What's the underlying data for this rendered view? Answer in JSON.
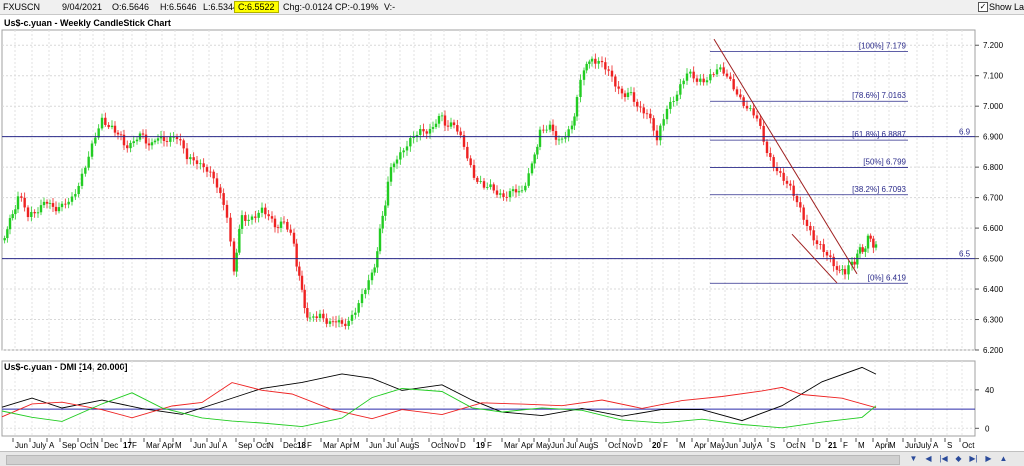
{
  "topbar": {
    "symbol": "FXUSCN",
    "date": "9/04/2021",
    "open": "O:6.5646",
    "high": "H:6.5646",
    "low": "L:6.5344",
    "close": "C:6.5522",
    "change": "Chg:-0.0124",
    "change_pct": "CP:-0.19%",
    "volume": "V:-",
    "show_last_label": "Show Last",
    "show_last_checked": "✓"
  },
  "chart_data": [
    {
      "type": "candlestick",
      "title": "Us$-c.yuan - Weekly CandleStick Chart",
      "ylim": [
        6.2,
        7.25
      ],
      "yticks": [
        "6.200",
        "6.300",
        "6.400",
        "6.500",
        "6.600",
        "6.700",
        "6.800",
        "6.900",
        "7.000",
        "7.100",
        "7.200"
      ],
      "grid": true,
      "up_color": "#22cc22",
      "down_color": "#ee2222",
      "close_path": [
        {
          "x": 0,
          "y": 6.56
        },
        {
          "x": 8,
          "y": 6.62
        },
        {
          "x": 16,
          "y": 6.7
        },
        {
          "x": 26,
          "y": 6.64
        },
        {
          "x": 36,
          "y": 6.67
        },
        {
          "x": 48,
          "y": 6.68
        },
        {
          "x": 60,
          "y": 6.66
        },
        {
          "x": 70,
          "y": 6.7
        },
        {
          "x": 80,
          "y": 6.78
        },
        {
          "x": 90,
          "y": 6.86
        },
        {
          "x": 100,
          "y": 6.95
        },
        {
          "x": 110,
          "y": 6.94
        },
        {
          "x": 122,
          "y": 6.87
        },
        {
          "x": 135,
          "y": 6.9
        },
        {
          "x": 150,
          "y": 6.88
        },
        {
          "x": 165,
          "y": 6.9
        },
        {
          "x": 175,
          "y": 6.89
        },
        {
          "x": 185,
          "y": 6.83
        },
        {
          "x": 195,
          "y": 6.83
        },
        {
          "x": 205,
          "y": 6.79
        },
        {
          "x": 215,
          "y": 6.73
        },
        {
          "x": 225,
          "y": 6.65
        },
        {
          "x": 232,
          "y": 6.47
        },
        {
          "x": 240,
          "y": 6.64
        },
        {
          "x": 250,
          "y": 6.64
        },
        {
          "x": 260,
          "y": 6.65
        },
        {
          "x": 270,
          "y": 6.62
        },
        {
          "x": 282,
          "y": 6.61
        },
        {
          "x": 292,
          "y": 6.55
        },
        {
          "x": 300,
          "y": 6.38
        },
        {
          "x": 308,
          "y": 6.29
        },
        {
          "x": 318,
          "y": 6.31
        },
        {
          "x": 328,
          "y": 6.3
        },
        {
          "x": 340,
          "y": 6.28
        },
        {
          "x": 350,
          "y": 6.32
        },
        {
          "x": 360,
          "y": 6.37
        },
        {
          "x": 370,
          "y": 6.44
        },
        {
          "x": 378,
          "y": 6.58
        },
        {
          "x": 386,
          "y": 6.75
        },
        {
          "x": 395,
          "y": 6.84
        },
        {
          "x": 405,
          "y": 6.88
        },
        {
          "x": 415,
          "y": 6.9
        },
        {
          "x": 428,
          "y": 6.93
        },
        {
          "x": 440,
          "y": 6.96
        },
        {
          "x": 452,
          "y": 6.93
        },
        {
          "x": 462,
          "y": 6.87
        },
        {
          "x": 472,
          "y": 6.78
        },
        {
          "x": 482,
          "y": 6.73
        },
        {
          "x": 495,
          "y": 6.72
        },
        {
          "x": 508,
          "y": 6.71
        },
        {
          "x": 520,
          "y": 6.73
        },
        {
          "x": 530,
          "y": 6.8
        },
        {
          "x": 538,
          "y": 6.92
        },
        {
          "x": 548,
          "y": 6.92
        },
        {
          "x": 560,
          "y": 6.89
        },
        {
          "x": 570,
          "y": 6.92
        },
        {
          "x": 575,
          "y": 7.04
        },
        {
          "x": 582,
          "y": 7.12
        },
        {
          "x": 590,
          "y": 7.16
        },
        {
          "x": 600,
          "y": 7.13
        },
        {
          "x": 610,
          "y": 7.09
        },
        {
          "x": 620,
          "y": 7.05
        },
        {
          "x": 632,
          "y": 7.02
        },
        {
          "x": 645,
          "y": 6.98
        },
        {
          "x": 655,
          "y": 6.88
        },
        {
          "x": 665,
          "y": 7.0
        },
        {
          "x": 675,
          "y": 7.05
        },
        {
          "x": 685,
          "y": 7.1
        },
        {
          "x": 695,
          "y": 7.08
        },
        {
          "x": 705,
          "y": 7.1
        },
        {
          "x": 715,
          "y": 7.12
        },
        {
          "x": 725,
          "y": 7.09
        },
        {
          "x": 735,
          "y": 7.05
        },
        {
          "x": 745,
          "y": 7.0
        },
        {
          "x": 755,
          "y": 6.95
        },
        {
          "x": 765,
          "y": 6.85
        },
        {
          "x": 775,
          "y": 6.8
        },
        {
          "x": 785,
          "y": 6.74
        },
        {
          "x": 795,
          "y": 6.68
        },
        {
          "x": 805,
          "y": 6.62
        },
        {
          "x": 815,
          "y": 6.55
        },
        {
          "x": 825,
          "y": 6.5
        },
        {
          "x": 835,
          "y": 6.47
        },
        {
          "x": 843,
          "y": 6.45
        },
        {
          "x": 850,
          "y": 6.49
        },
        {
          "x": 858,
          "y": 6.52
        },
        {
          "x": 866,
          "y": 6.56
        },
        {
          "x": 874,
          "y": 6.55
        }
      ],
      "price_lines": [
        {
          "y": 6.9,
          "label": "6.9"
        },
        {
          "y": 6.5,
          "label": "6.5"
        }
      ],
      "fibonacci": [
        {
          "label": "[100%] 7.179",
          "y": 7.179
        },
        {
          "label": "[78.6%] 7.0163",
          "y": 7.0163
        },
        {
          "label": "[61.8%] 6.8887",
          "y": 6.8887
        },
        {
          "label": "[50%] 6.799",
          "y": 6.799
        },
        {
          "label": "[38.2%] 6.7093",
          "y": 6.7093
        },
        {
          "label": "[0%] 6.419",
          "y": 6.419
        }
      ],
      "trendlines": [
        {
          "x1": 712,
          "y1": 7.22,
          "x2": 855,
          "y2": 6.45
        },
        {
          "x1": 790,
          "y1": 6.58,
          "x2": 835,
          "y2": 6.42
        }
      ]
    },
    {
      "type": "line",
      "title": "Us$-c.yuan - DMI [14, 20.000]",
      "ylim": [
        -8,
        70
      ],
      "yticks": [
        "0",
        "40"
      ],
      "threshold": 20,
      "series": [
        {
          "color": "#000000",
          "values": [
            [
              0,
              22
            ],
            [
              30,
              30
            ],
            [
              60,
              22
            ],
            [
              100,
              28
            ],
            [
              140,
              20
            ],
            [
              180,
              16
            ],
            [
              220,
              28
            ],
            [
              260,
              40
            ],
            [
              300,
              48
            ],
            [
              340,
              58
            ],
            [
              370,
              52
            ],
            [
              400,
              38
            ],
            [
              440,
              45
            ],
            [
              470,
              28
            ],
            [
              500,
              18
            ],
            [
              540,
              12
            ],
            [
              580,
              20
            ],
            [
              620,
              14
            ],
            [
              660,
              20
            ],
            [
              700,
              18
            ],
            [
              740,
              8
            ],
            [
              780,
              25
            ],
            [
              820,
              48
            ],
            [
              860,
              62
            ],
            [
              874,
              55
            ]
          ]
        },
        {
          "color": "#ee2222",
          "values": [
            [
              0,
              12
            ],
            [
              30,
              24
            ],
            [
              60,
              28
            ],
            [
              100,
              18
            ],
            [
              130,
              12
            ],
            [
              170,
              22
            ],
            [
              200,
              28
            ],
            [
              230,
              48
            ],
            [
              260,
              38
            ],
            [
              290,
              36
            ],
            [
              330,
              18
            ],
            [
              370,
              10
            ],
            [
              400,
              18
            ],
            [
              440,
              14
            ],
            [
              480,
              28
            ],
            [
              520,
              25
            ],
            [
              560,
              22
            ],
            [
              600,
              30
            ],
            [
              640,
              22
            ],
            [
              680,
              28
            ],
            [
              720,
              32
            ],
            [
              760,
              40
            ],
            [
              780,
              44
            ],
            [
              800,
              36
            ],
            [
              840,
              30
            ],
            [
              874,
              20
            ]
          ]
        },
        {
          "color": "#22cc22",
          "values": [
            [
              0,
              18
            ],
            [
              30,
              10
            ],
            [
              60,
              8
            ],
            [
              100,
              24
            ],
            [
              130,
              38
            ],
            [
              160,
              22
            ],
            [
              200,
              12
            ],
            [
              230,
              8
            ],
            [
              260,
              4
            ],
            [
              300,
              2
            ],
            [
              340,
              12
            ],
            [
              370,
              32
            ],
            [
              400,
              40
            ],
            [
              440,
              38
            ],
            [
              470,
              20
            ],
            [
              500,
              18
            ],
            [
              540,
              20
            ],
            [
              580,
              18
            ],
            [
              620,
              10
            ],
            [
              660,
              6
            ],
            [
              700,
              8
            ],
            [
              740,
              4
            ],
            [
              780,
              2
            ],
            [
              820,
              6
            ],
            [
              860,
              10
            ],
            [
              874,
              22
            ]
          ]
        }
      ]
    }
  ],
  "xaxis": {
    "labels": [
      {
        "x": 15,
        "t": "Jun"
      },
      {
        "x": 32,
        "t": "July"
      },
      {
        "x": 49,
        "t": "A"
      },
      {
        "x": 62,
        "t": "Sep"
      },
      {
        "x": 80,
        "t": "Oct"
      },
      {
        "x": 93,
        "t": "N"
      },
      {
        "x": 104,
        "t": "Dec"
      },
      {
        "x": 123,
        "t": "17",
        "b": true
      },
      {
        "x": 132,
        "t": "F"
      },
      {
        "x": 146,
        "t": "Mar"
      },
      {
        "x": 162,
        "t": "Apr"
      },
      {
        "x": 175,
        "t": "M"
      },
      {
        "x": 193,
        "t": "Jun"
      },
      {
        "x": 209,
        "t": "Jul"
      },
      {
        "x": 222,
        "t": "A"
      },
      {
        "x": 238,
        "t": "Sep"
      },
      {
        "x": 256,
        "t": "Oct"
      },
      {
        "x": 268,
        "t": "N"
      },
      {
        "x": 283,
        "t": "Dec"
      },
      {
        "x": 297,
        "t": "18",
        "b": true
      },
      {
        "x": 307,
        "t": "F"
      },
      {
        "x": 323,
        "t": "Mar"
      },
      {
        "x": 340,
        "t": "Apr"
      },
      {
        "x": 353,
        "t": "M"
      },
      {
        "x": 369,
        "t": "Jun"
      },
      {
        "x": 386,
        "t": "Jul"
      },
      {
        "x": 400,
        "t": "Aug"
      },
      {
        "x": 414,
        "t": "S"
      },
      {
        "x": 431,
        "t": "Oct"
      },
      {
        "x": 444,
        "t": "Nov"
      },
      {
        "x": 460,
        "t": "D"
      },
      {
        "x": 476,
        "t": "19",
        "b": true
      },
      {
        "x": 487,
        "t": "F"
      },
      {
        "x": 504,
        "t": "Mar"
      },
      {
        "x": 521,
        "t": "Apr"
      },
      {
        "x": 536,
        "t": "May"
      },
      {
        "x": 551,
        "t": "Jun"
      },
      {
        "x": 566,
        "t": "Jul"
      },
      {
        "x": 579,
        "t": "Aug"
      },
      {
        "x": 593,
        "t": "S"
      },
      {
        "x": 608,
        "t": "Oct"
      },
      {
        "x": 622,
        "t": "Nov"
      },
      {
        "x": 637,
        "t": "D"
      },
      {
        "x": 652,
        "t": "20",
        "b": true
      },
      {
        "x": 663,
        "t": "F"
      },
      {
        "x": 679,
        "t": "M"
      },
      {
        "x": 694,
        "t": "Apr"
      },
      {
        "x": 710,
        "t": "May"
      },
      {
        "x": 725,
        "t": "Jun"
      },
      {
        "x": 742,
        "t": "July"
      },
      {
        "x": 757,
        "t": "A"
      },
      {
        "x": 770,
        "t": "S"
      },
      {
        "x": 786,
        "t": "Oct"
      },
      {
        "x": 800,
        "t": "N"
      },
      {
        "x": 815,
        "t": "D"
      },
      {
        "x": 828,
        "t": "21",
        "b": true
      },
      {
        "x": 843,
        "t": "F"
      },
      {
        "x": 858,
        "t": "M"
      },
      {
        "x": 875,
        "t": "April"
      },
      {
        "x": 889,
        "t": "M"
      },
      {
        "x": 905,
        "t": "Jun"
      },
      {
        "x": 917,
        "t": "July"
      },
      {
        "x": 933,
        "t": "A"
      },
      {
        "x": 947,
        "t": "S"
      },
      {
        "x": 962,
        "t": "Oct"
      }
    ]
  }
}
